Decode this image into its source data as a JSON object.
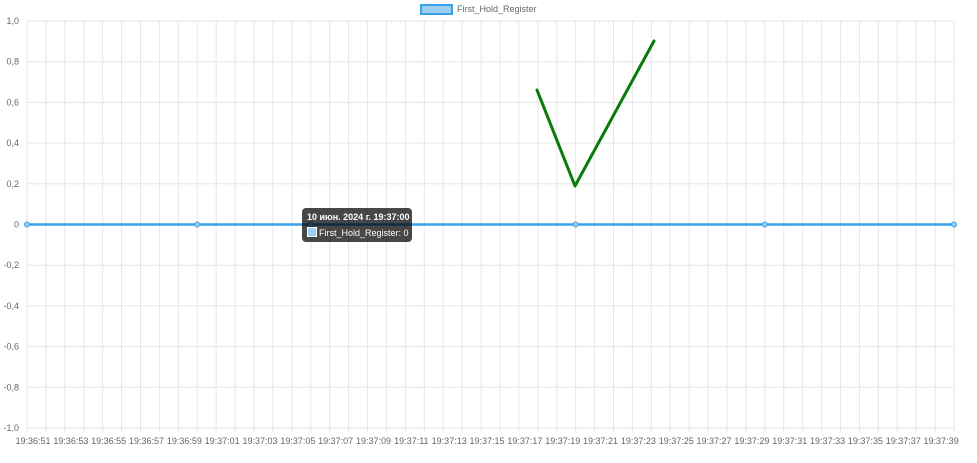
{
  "chart_data": {
    "type": "line",
    "title": "",
    "xlabel": "",
    "ylabel": "",
    "ylim": [
      -1.0,
      1.0
    ],
    "grid": true,
    "legend": "top-center",
    "y_ticks": [
      "1,0",
      "0,8",
      "0,6",
      "0,4",
      "0,2",
      "0",
      "-0,2",
      "-0,4",
      "-0,6",
      "-0,8",
      "-1,0"
    ],
    "x_ticks": [
      "19:36:51",
      "19:36:53",
      "19:36:55",
      "19:36:57",
      "19:36:59",
      "19:37:01",
      "19:37:03",
      "19:37:05",
      "19:37:07",
      "19:37:09",
      "19:37:11",
      "19:37:13",
      "19:37:15",
      "19:37:17",
      "19:37:19",
      "19:37:21",
      "19:37:23",
      "19:37:25",
      "19:37:27",
      "19:37:29",
      "19:37:31",
      "19:37:33",
      "19:37:35",
      "19:37:37",
      "19:37:39"
    ],
    "series": [
      {
        "name": "First_Hold_Register",
        "color": "#36a2eb",
        "x": [
          "19:36:51",
          "19:37:00",
          "19:37:06",
          "19:37:20",
          "19:37:30",
          "19:37:40"
        ],
        "values": [
          0,
          0,
          0,
          0,
          0,
          0
        ]
      }
    ],
    "tooltip": {
      "title": "10 июн. 2024 г. 19:37:00",
      "label": "First_Hold_Register: 0"
    },
    "annotation": {
      "type": "checkmark",
      "color": "#0a7a0a"
    }
  }
}
